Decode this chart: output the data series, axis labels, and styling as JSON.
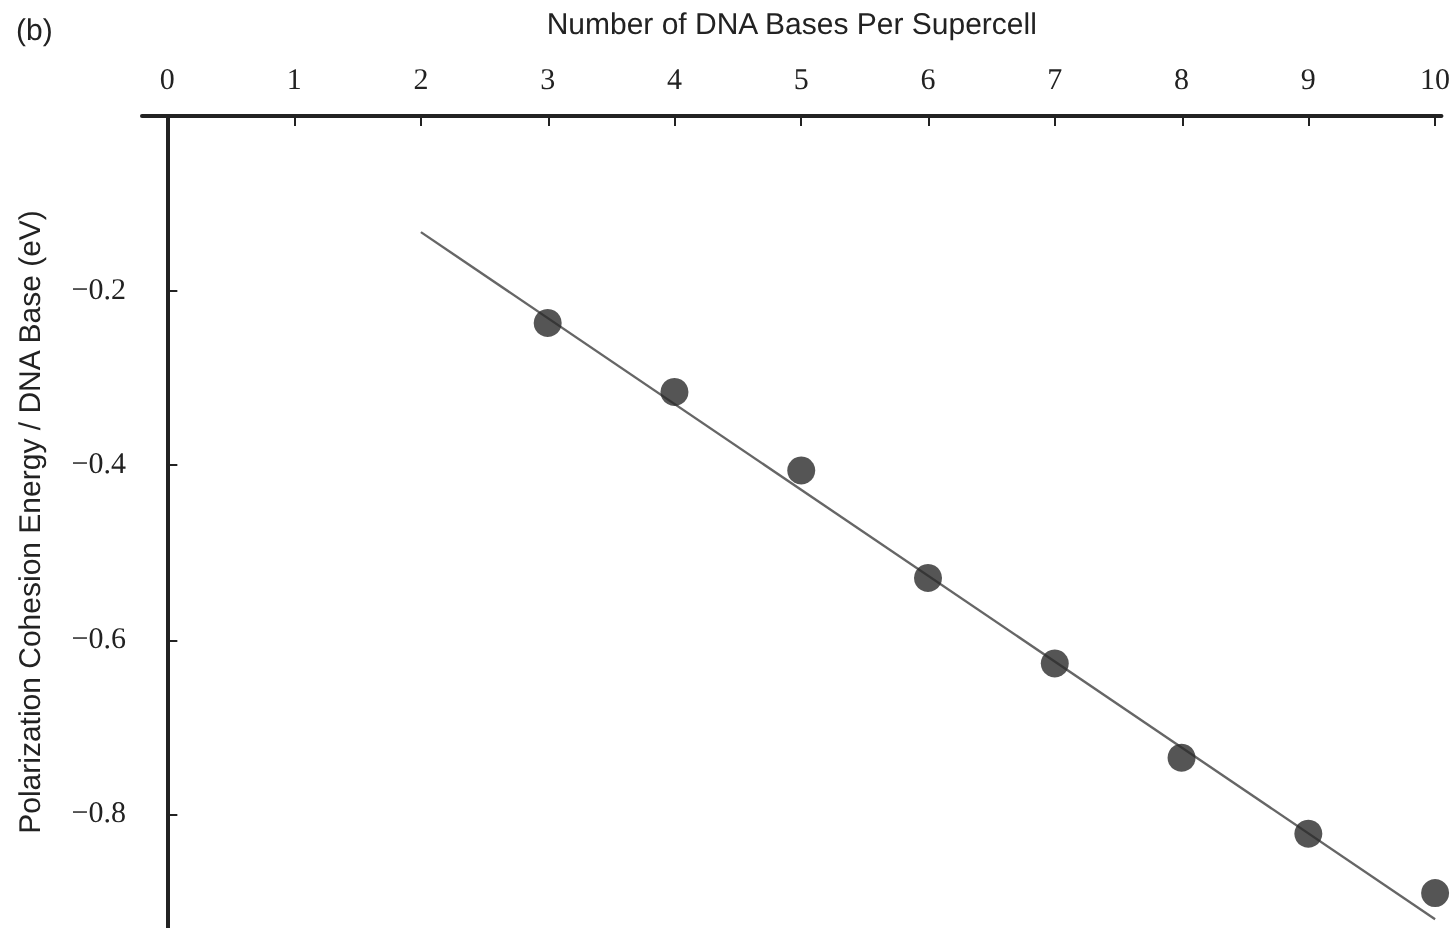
{
  "chart_data": {
    "type": "scatter",
    "xlabel": "Number of DNA Bases Per Supercell",
    "ylabel": "Polarization Cohesion Energy / DNA Base (eV)",
    "annotations": [
      "(b)"
    ],
    "xlim": [
      -0.2,
      10.05
    ],
    "xticks": [
      0,
      1,
      2,
      3,
      4,
      5,
      6,
      7,
      8,
      9,
      10
    ],
    "ylim": [
      -0.93,
      0
    ],
    "yticks": [
      -0.2,
      -0.4,
      -0.6,
      -0.8
    ],
    "grid": false,
    "series": [
      {
        "color": "#2b2b2b",
        "marker": "circle",
        "x": [
          3,
          4,
          5,
          6,
          7,
          8,
          9,
          10
        ],
        "values": [
          -0.237,
          -0.316,
          -0.406,
          -0.529,
          -0.627,
          -0.735,
          -0.822,
          -0.89
        ]
      },
      {
        "type": "line",
        "color": "#666666",
        "marker": "none",
        "line_style": "solid",
        "x": [
          2,
          10
        ],
        "values": [
          -0.133,
          -0.92
        ]
      }
    ]
  }
}
